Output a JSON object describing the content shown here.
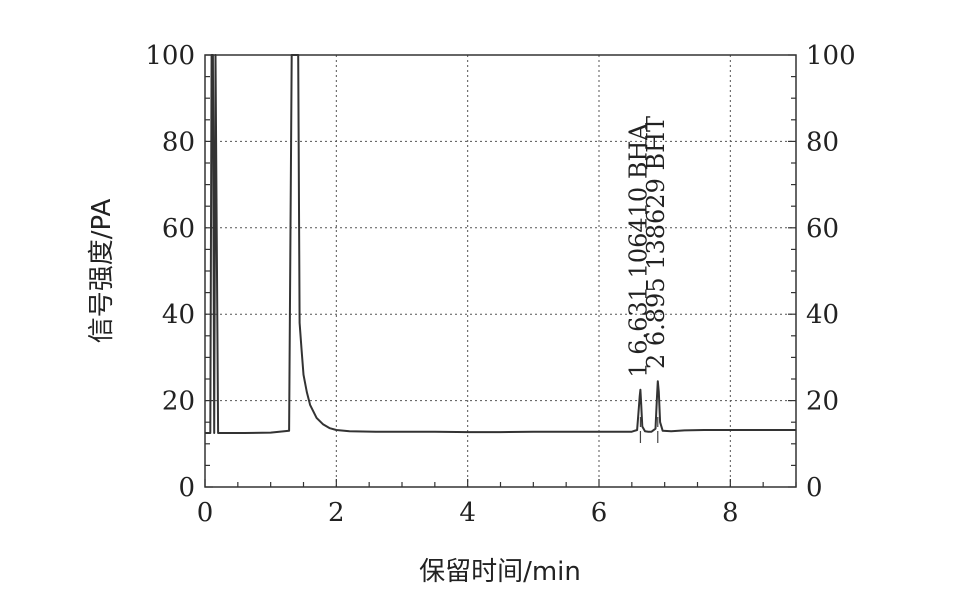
{
  "chart_data": {
    "type": "line",
    "xlabel": "保留时间/min",
    "ylabel": "信号强度/PA",
    "xlim": [
      0,
      9
    ],
    "ylim": [
      0,
      100
    ],
    "x_ticks": [
      "0",
      "2",
      "4",
      "6",
      "8"
    ],
    "y_ticks": [
      "0",
      "20",
      "40",
      "60",
      "80",
      "100"
    ],
    "x_tick_values": [
      0,
      2,
      4,
      6,
      8
    ],
    "y_tick_values": [
      0,
      20,
      40,
      60,
      80,
      100
    ],
    "grid": true,
    "right_axis": true,
    "line_color": "#333333",
    "series": [
      {
        "x": [
          0,
          0.08,
          0.1,
          0.12,
          0.14,
          0.16,
          0.2,
          0.6,
          1.0,
          1.28,
          1.32,
          1.34,
          1.38,
          1.42,
          1.44,
          1.47,
          1.5,
          1.55,
          1.6,
          1.7,
          1.8,
          1.9,
          2.0,
          2.2,
          2.6,
          3.0,
          3.5,
          4.0,
          4.5,
          5.0,
          5.5,
          6.0,
          6.5,
          6.58,
          6.6,
          6.62,
          6.631,
          6.64,
          6.66,
          6.7,
          6.75,
          6.8,
          6.86,
          6.88,
          6.895,
          6.91,
          6.93,
          6.97,
          7.1,
          7.3,
          7.6,
          8.0,
          8.5,
          9.0
        ],
        "y": [
          12.5,
          12.5,
          100,
          100,
          12.5,
          100,
          12.5,
          12.5,
          12.6,
          13,
          100,
          100,
          100,
          100,
          38,
          32,
          26,
          22,
          19,
          16,
          14.5,
          13.6,
          13.2,
          12.9,
          12.8,
          12.8,
          12.8,
          12.7,
          12.7,
          12.8,
          12.8,
          12.8,
          12.8,
          13.2,
          17,
          21,
          22.5,
          20,
          14,
          12.9,
          12.8,
          12.8,
          13.5,
          20,
          24.5,
          22,
          15,
          13,
          12.9,
          13.1,
          13.2,
          13.2,
          13.2,
          13.2
        ]
      }
    ],
    "annotations": [
      {
        "text": "1 6.631 106410 BHA",
        "x": 6.631,
        "y": 23
      },
      {
        "text": "2 6.895 138629 BHT",
        "x": 6.895,
        "y": 25
      }
    ]
  }
}
